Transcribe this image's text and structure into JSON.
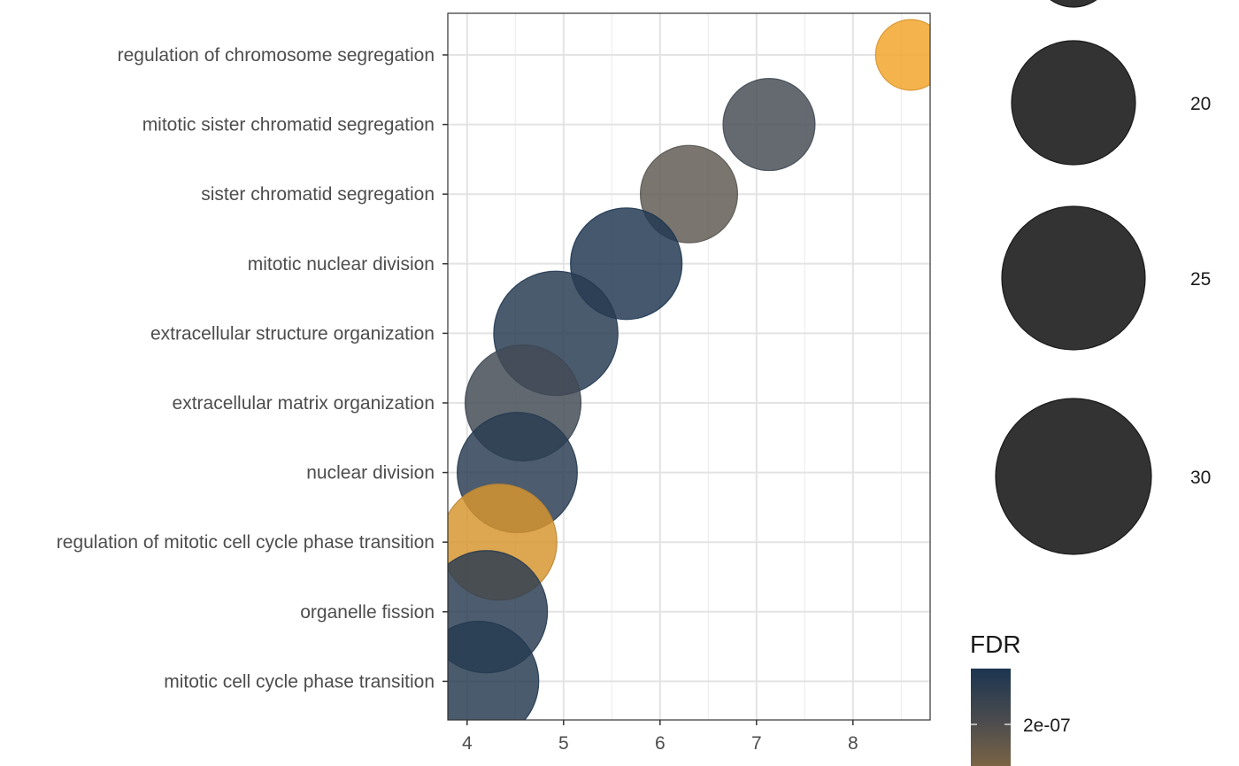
{
  "chart_data": {
    "type": "scatter",
    "subtype": "bubble",
    "categories": [
      "regulation of chromosome segregation",
      "mitotic sister chromatid segregation",
      "sister chromatid segregation",
      "mitotic nuclear division",
      "extracellular structure organization",
      "extracellular matrix organization",
      "nuclear division",
      "regulation of mitotic cell cycle phase transition",
      "organelle fission",
      "mitotic cell cycle phase transition"
    ],
    "points": [
      {
        "term": "regulation of chromosome segregation",
        "x": 8.6,
        "count": 10,
        "fdr_level": 1.0
      },
      {
        "term": "mitotic sister chromatid segregation",
        "x": 7.13,
        "count": 17,
        "fdr_level": 0.45
      },
      {
        "term": "sister chromatid segregation",
        "x": 6.3,
        "count": 19,
        "fdr_level": 0.6
      },
      {
        "term": "mitotic nuclear division",
        "x": 5.65,
        "count": 25,
        "fdr_level": 0.05
      },
      {
        "term": "extracellular structure organization",
        "x": 4.92,
        "count": 31,
        "fdr_level": 0.12
      },
      {
        "term": "extracellular matrix organization",
        "x": 4.58,
        "count": 27,
        "fdr_level": 0.4
      },
      {
        "term": "nuclear division",
        "x": 4.52,
        "count": 29,
        "fdr_level": 0.15
      },
      {
        "term": "regulation of mitotic cell cycle phase transition",
        "x": 4.33,
        "count": 27,
        "fdr_level": 0.95
      },
      {
        "term": "organelle fission",
        "x": 4.2,
        "count": 30,
        "fdr_level": 0.15
      },
      {
        "term": "mitotic cell cycle phase transition",
        "x": 4.12,
        "count": 29,
        "fdr_level": 0.1
      }
    ],
    "xlim": [
      3.8,
      8.8
    ],
    "x_ticks": [
      "4",
      "5",
      "6",
      "7",
      "8"
    ],
    "grid": true,
    "legend_size": {
      "placement": "right",
      "entries": [
        "20",
        "25",
        "30"
      ]
    },
    "legend_color": {
      "title": "FDR",
      "placement": "bottom-right",
      "tick_label": "2e-07",
      "colors": [
        "#1c3550",
        "#5c5a58",
        "#7a6445",
        "#f2a52a"
      ]
    }
  }
}
